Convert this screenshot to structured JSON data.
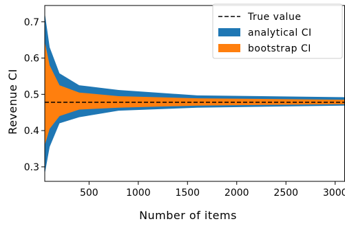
{
  "chart_data": {
    "type": "area",
    "xlabel": "Number of items",
    "ylabel": "Revenue CI",
    "xlim": [
      50,
      3100
    ],
    "ylim": [
      0.26,
      0.745
    ],
    "xticks": [
      500,
      1000,
      1500,
      2000,
      2500,
      3000
    ],
    "yticks": [
      0.3,
      0.4,
      0.5,
      0.6,
      0.7
    ],
    "true_value": 0.478,
    "x": [
      50,
      100,
      200,
      400,
      800,
      1600,
      3100
    ],
    "series": [
      {
        "name": "analytical CI",
        "color": "#1f77b4",
        "lower": [
          0.28,
          0.355,
          0.42,
          0.437,
          0.455,
          0.463,
          0.469
        ],
        "upper": [
          0.725,
          0.63,
          0.558,
          0.525,
          0.512,
          0.497,
          0.492
        ]
      },
      {
        "name": "bootstrap CI",
        "color": "#ff7f0e",
        "lower": [
          0.36,
          0.405,
          0.44,
          0.458,
          0.463,
          0.469,
          0.473
        ],
        "upper": [
          0.645,
          0.58,
          0.525,
          0.505,
          0.495,
          0.489,
          0.485
        ]
      }
    ],
    "legend": {
      "position": "upper right",
      "entries": [
        "True value",
        "analytical CI",
        "bootstrap CI"
      ]
    },
    "grid": false
  }
}
